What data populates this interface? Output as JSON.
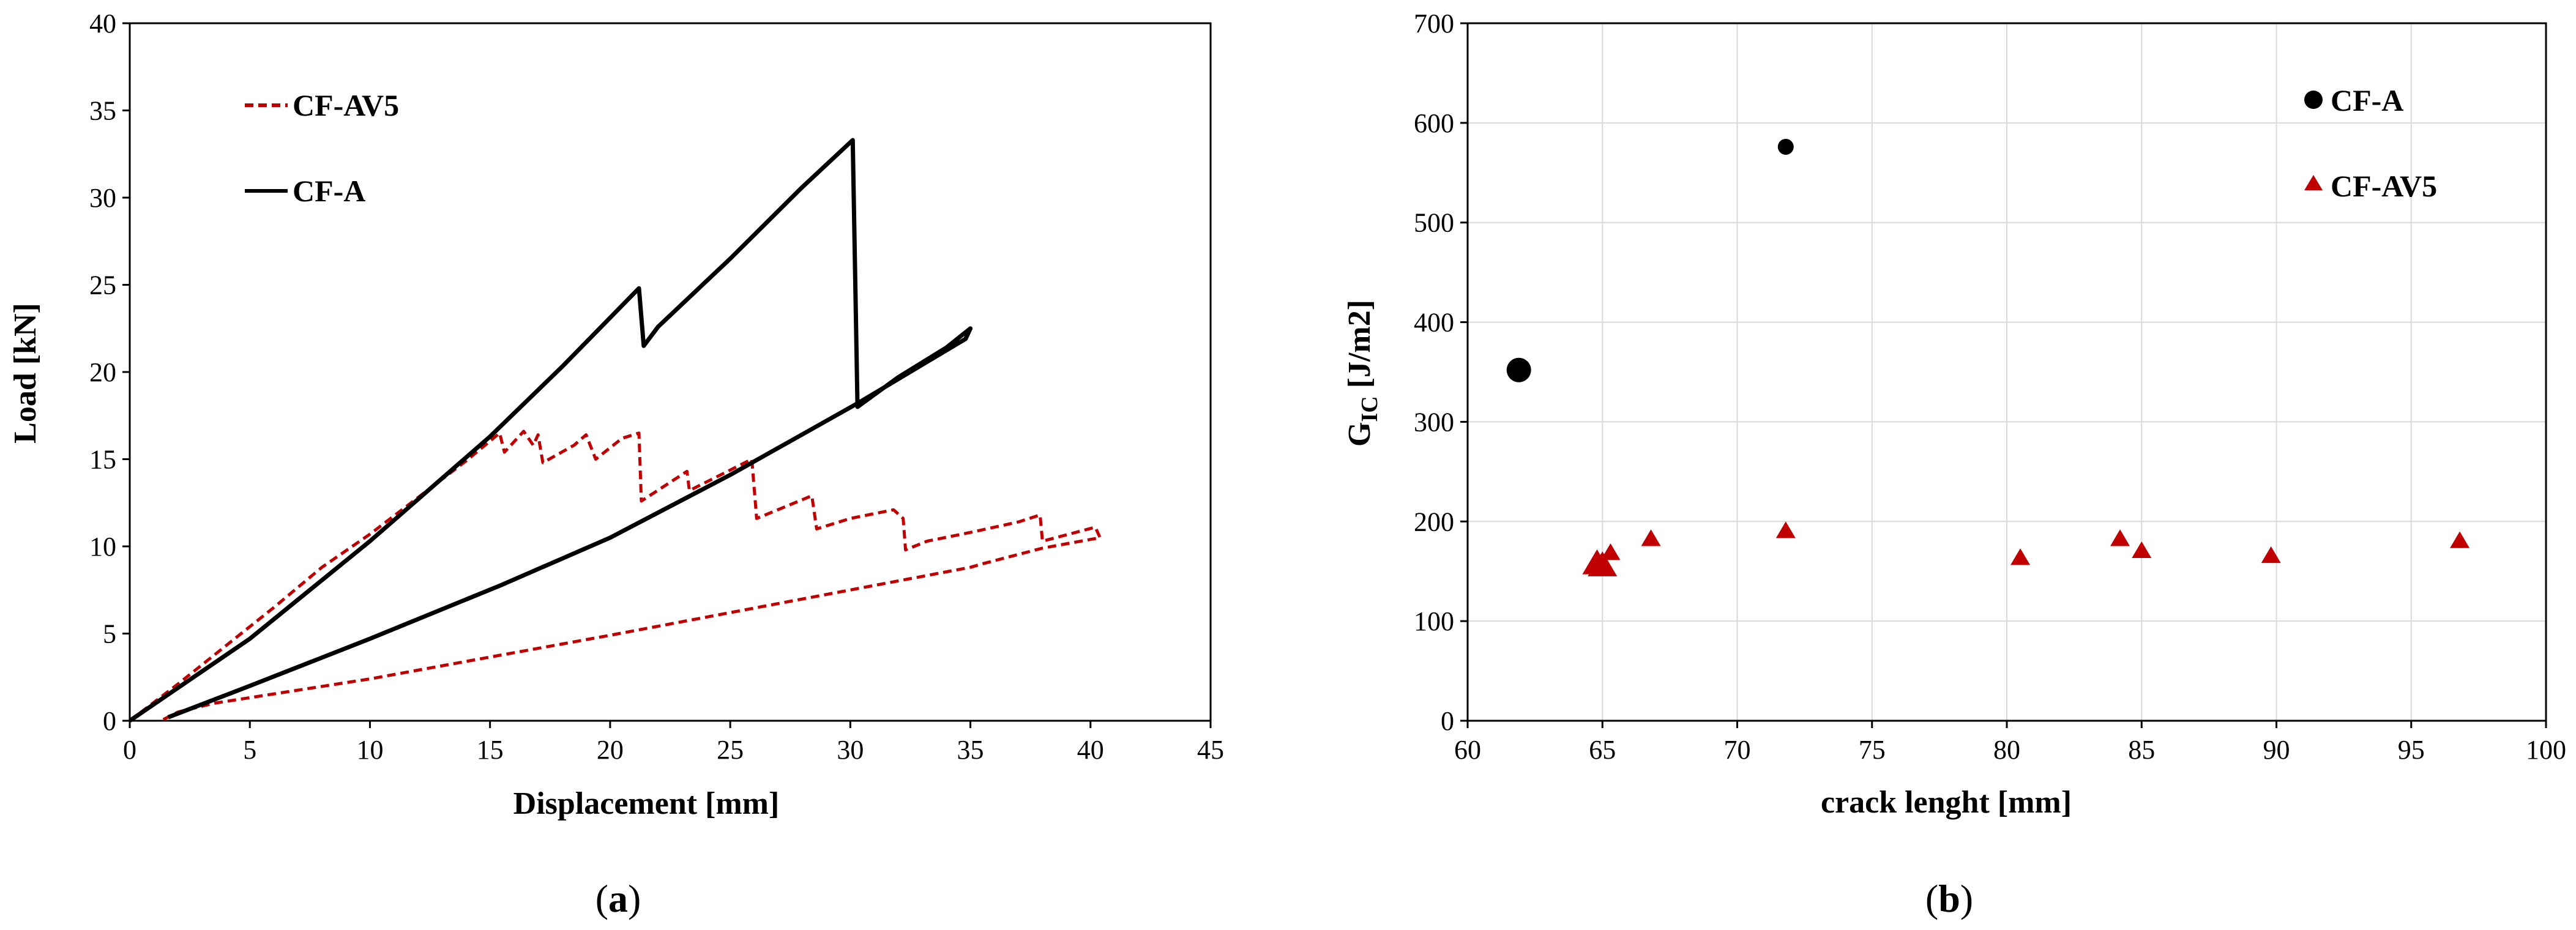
{
  "colors": {
    "cf_a": "#000000",
    "cf_av5": "#c00000",
    "grid": "#d9d9d9",
    "axis": "#000000"
  },
  "chart_data": [
    {
      "type": "line",
      "caption_open": "(",
      "caption_letter": "a",
      "caption_close": ")",
      "xlabel": "Displacement [mm]",
      "ylabel": "Load [kN]",
      "xlim": [
        0,
        45
      ],
      "ylim": [
        0,
        40
      ],
      "xticks": [
        0,
        5,
        10,
        15,
        20,
        25,
        30,
        35,
        40,
        45
      ],
      "yticks": [
        0,
        5,
        10,
        15,
        20,
        25,
        30,
        35,
        40
      ],
      "grid": false,
      "legend_position": "top-left",
      "series": [
        {
          "name": "CF-AV5",
          "color": "#c00000",
          "style": "dashed",
          "points": [
            [
              0,
              0
            ],
            [
              2,
              2.1
            ],
            [
              4,
              4.3
            ],
            [
              6,
              6.5
            ],
            [
              8,
              8.8
            ],
            [
              10,
              10.7
            ],
            [
              12,
              12.8
            ],
            [
              14,
              14.9
            ],
            [
              15.4,
              16.5
            ],
            [
              15.6,
              15.4
            ],
            [
              16.4,
              16.6
            ],
            [
              16.8,
              15.8
            ],
            [
              17.0,
              16.4
            ],
            [
              17.2,
              14.8
            ],
            [
              18.5,
              15.8
            ],
            [
              19.0,
              16.4
            ],
            [
              19.4,
              15.0
            ],
            [
              20.5,
              16.2
            ],
            [
              21.2,
              16.5
            ],
            [
              21.3,
              12.6
            ],
            [
              23.2,
              14.3
            ],
            [
              23.3,
              13.2
            ],
            [
              25.9,
              15.0
            ],
            [
              26.1,
              11.6
            ],
            [
              28.4,
              12.9
            ],
            [
              28.6,
              11.0
            ],
            [
              30.0,
              11.6
            ],
            [
              31.8,
              12.1
            ],
            [
              32.2,
              11.6
            ],
            [
              32.3,
              9.8
            ],
            [
              33.2,
              10.3
            ],
            [
              35.0,
              10.8
            ],
            [
              37.0,
              11.4
            ],
            [
              37.9,
              11.8
            ],
            [
              38.0,
              10.3
            ],
            [
              40.2,
              11.1
            ],
            [
              40.4,
              10.5
            ],
            [
              38.0,
              9.9
            ],
            [
              35.5,
              9.0
            ],
            [
              35.0,
              8.8
            ],
            [
              20,
              4.9
            ],
            [
              10,
              2.4
            ],
            [
              3.5,
              1.0
            ],
            [
              2.0,
              0.5
            ],
            [
              1.3,
              0
            ]
          ]
        },
        {
          "name": "CF-A",
          "color": "#000000",
          "style": "solid",
          "points": [
            [
              0,
              0
            ],
            [
              5,
              4.7
            ],
            [
              10,
              10.3
            ],
            [
              15,
              16.3
            ],
            [
              18,
              20.3
            ],
            [
              21.2,
              24.8
            ],
            [
              21.4,
              21.5
            ],
            [
              22,
              22.6
            ],
            [
              25,
              26.5
            ],
            [
              28,
              30.6
            ],
            [
              30.1,
              33.3
            ],
            [
              30.3,
              18.0
            ],
            [
              32,
              19.7
            ],
            [
              34,
              21.4
            ],
            [
              35.0,
              22.5
            ],
            [
              34.8,
              21.9
            ],
            [
              30.3,
              18.2
            ],
            [
              25,
              14.1
            ],
            [
              20,
              10.5
            ],
            [
              15.5,
              7.8
            ],
            [
              10,
              4.7
            ],
            [
              5,
              2.0
            ],
            [
              1.6,
              0.2
            ]
          ]
        }
      ]
    },
    {
      "type": "scatter",
      "caption_open": "(",
      "caption_letter": "b",
      "caption_close": ")",
      "xlabel": "crack lenght [mm]",
      "ylabel_main": "G",
      "ylabel_sub": "IC",
      "ylabel_unit": "  [J/m2]",
      "xlim": [
        60,
        100
      ],
      "ylim": [
        0,
        700
      ],
      "xticks": [
        60,
        65,
        70,
        75,
        80,
        85,
        90,
        95,
        100
      ],
      "yticks": [
        0,
        100,
        200,
        300,
        400,
        500,
        600,
        700
      ],
      "grid": true,
      "legend_position": "top-right",
      "series": [
        {
          "name": "CF-A",
          "color": "#000000",
          "marker": "circle",
          "points": [
            [
              61.9,
              352,
              20
            ],
            [
              71.8,
              576,
              13
            ]
          ]
        },
        {
          "name": "CF-AV5",
          "color": "#c00000",
          "marker": "triangle",
          "points": [
            [
              64.8,
              157,
              24
            ],
            [
              65.0,
              155,
              24
            ],
            [
              65.3,
              168,
              16
            ],
            [
              66.8,
              182,
              16
            ],
            [
              71.8,
              190,
              16
            ],
            [
              80.5,
              163,
              16
            ],
            [
              84.2,
              182,
              16
            ],
            [
              85.0,
              170,
              16
            ],
            [
              89.8,
              165,
              16
            ],
            [
              96.8,
              180,
              16
            ]
          ]
        }
      ]
    }
  ]
}
